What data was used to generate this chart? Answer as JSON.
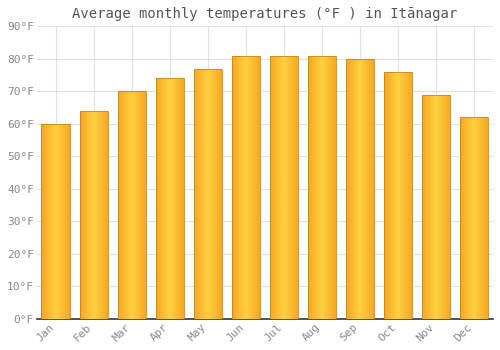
{
  "title": "Average monthly temperatures (°F ) in Itānagar",
  "months": [
    "Jan",
    "Feb",
    "Mar",
    "Apr",
    "May",
    "Jun",
    "Jul",
    "Aug",
    "Sep",
    "Oct",
    "Nov",
    "Dec"
  ],
  "values": [
    60,
    64,
    70,
    74,
    77,
    81,
    81,
    81,
    80,
    76,
    69,
    62
  ],
  "bar_color_left": "#F5A623",
  "bar_color_center": "#FFD040",
  "bar_color_right": "#F5A623",
  "bar_edge_color": "#C8861A",
  "background_color": "#FFFFFF",
  "grid_color": "#E0E0E0",
  "ylim": [
    0,
    90
  ],
  "yticks": [
    0,
    10,
    20,
    30,
    40,
    50,
    60,
    70,
    80,
    90
  ],
  "ytick_labels": [
    "0°F",
    "10°F",
    "20°F",
    "30°F",
    "40°F",
    "50°F",
    "60°F",
    "70°F",
    "80°F",
    "90°F"
  ],
  "title_fontsize": 10,
  "tick_fontsize": 8,
  "bar_width": 0.75
}
